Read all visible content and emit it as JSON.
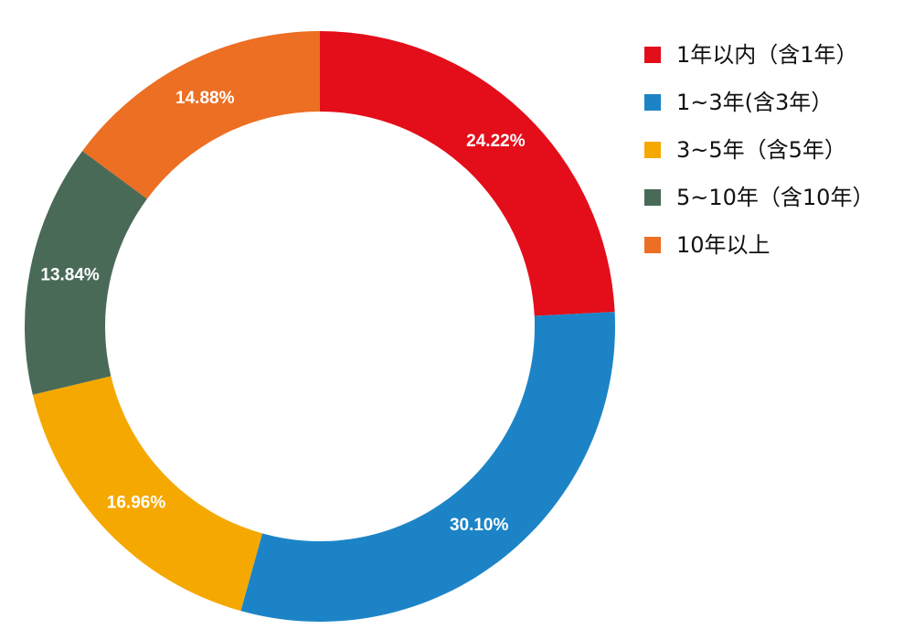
{
  "chart_data": {
    "type": "donut",
    "categories": [
      "1年以内（含1年）",
      "1~3年(含3年）",
      "3~5年（含5年）",
      "5~10年（含10年）",
      "10年以上"
    ],
    "values": [
      24.22,
      30.1,
      16.96,
      13.84,
      14.88
    ],
    "value_labels": [
      "24.22%",
      "30.10%",
      "16.96%",
      "13.84%",
      "14.88%"
    ],
    "colors": [
      "#e30e1a",
      "#1c84c6",
      "#f5a800",
      "#4a6a58",
      "#ec6f23"
    ],
    "legend": "right"
  }
}
